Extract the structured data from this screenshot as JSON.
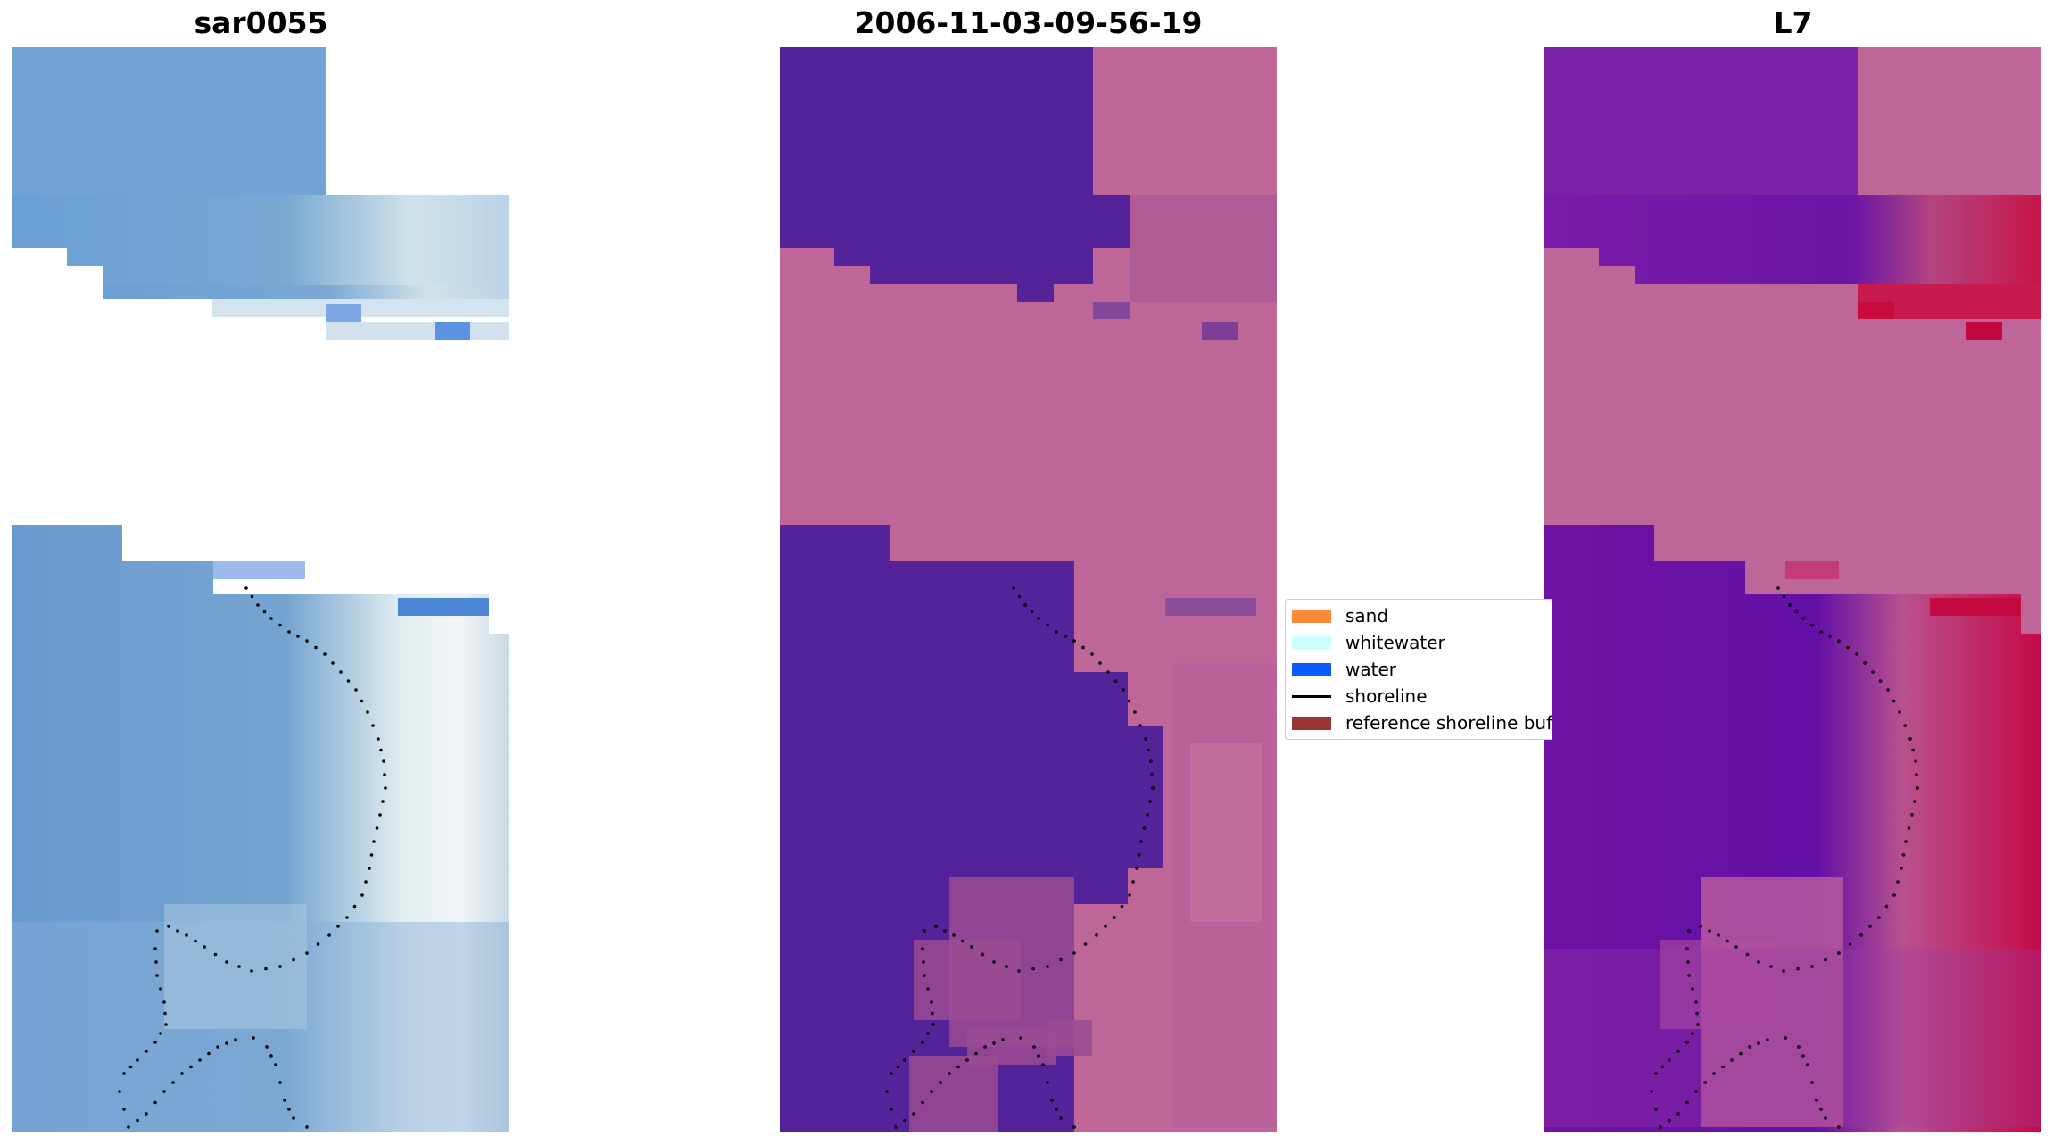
{
  "panels": [
    {
      "title": "sar0055"
    },
    {
      "title": "2006-11-03-09-56-19"
    },
    {
      "title": "L7"
    }
  ],
  "legend": {
    "items": [
      {
        "label": "sand",
        "color": "#ff8c3c",
        "kind": "patch"
      },
      {
        "label": "whitewater",
        "color": "#ccffff",
        "kind": "patch"
      },
      {
        "label": "water",
        "color": "#0a5cff",
        "kind": "patch"
      },
      {
        "label": "shoreline",
        "color": "#000000",
        "kind": "line"
      },
      {
        "label": "reference shoreline buffer",
        "color": "#9b3534",
        "kind": "patch"
      }
    ]
  },
  "colors": {
    "rgb_blue": "#6fa0d6",
    "rgb_white": "#e6eef2",
    "class_water": "#54239a",
    "class_land": "#bd6697",
    "mndwi_purple": "#5b0ea7",
    "mndwi_red": "#c8073e"
  }
}
